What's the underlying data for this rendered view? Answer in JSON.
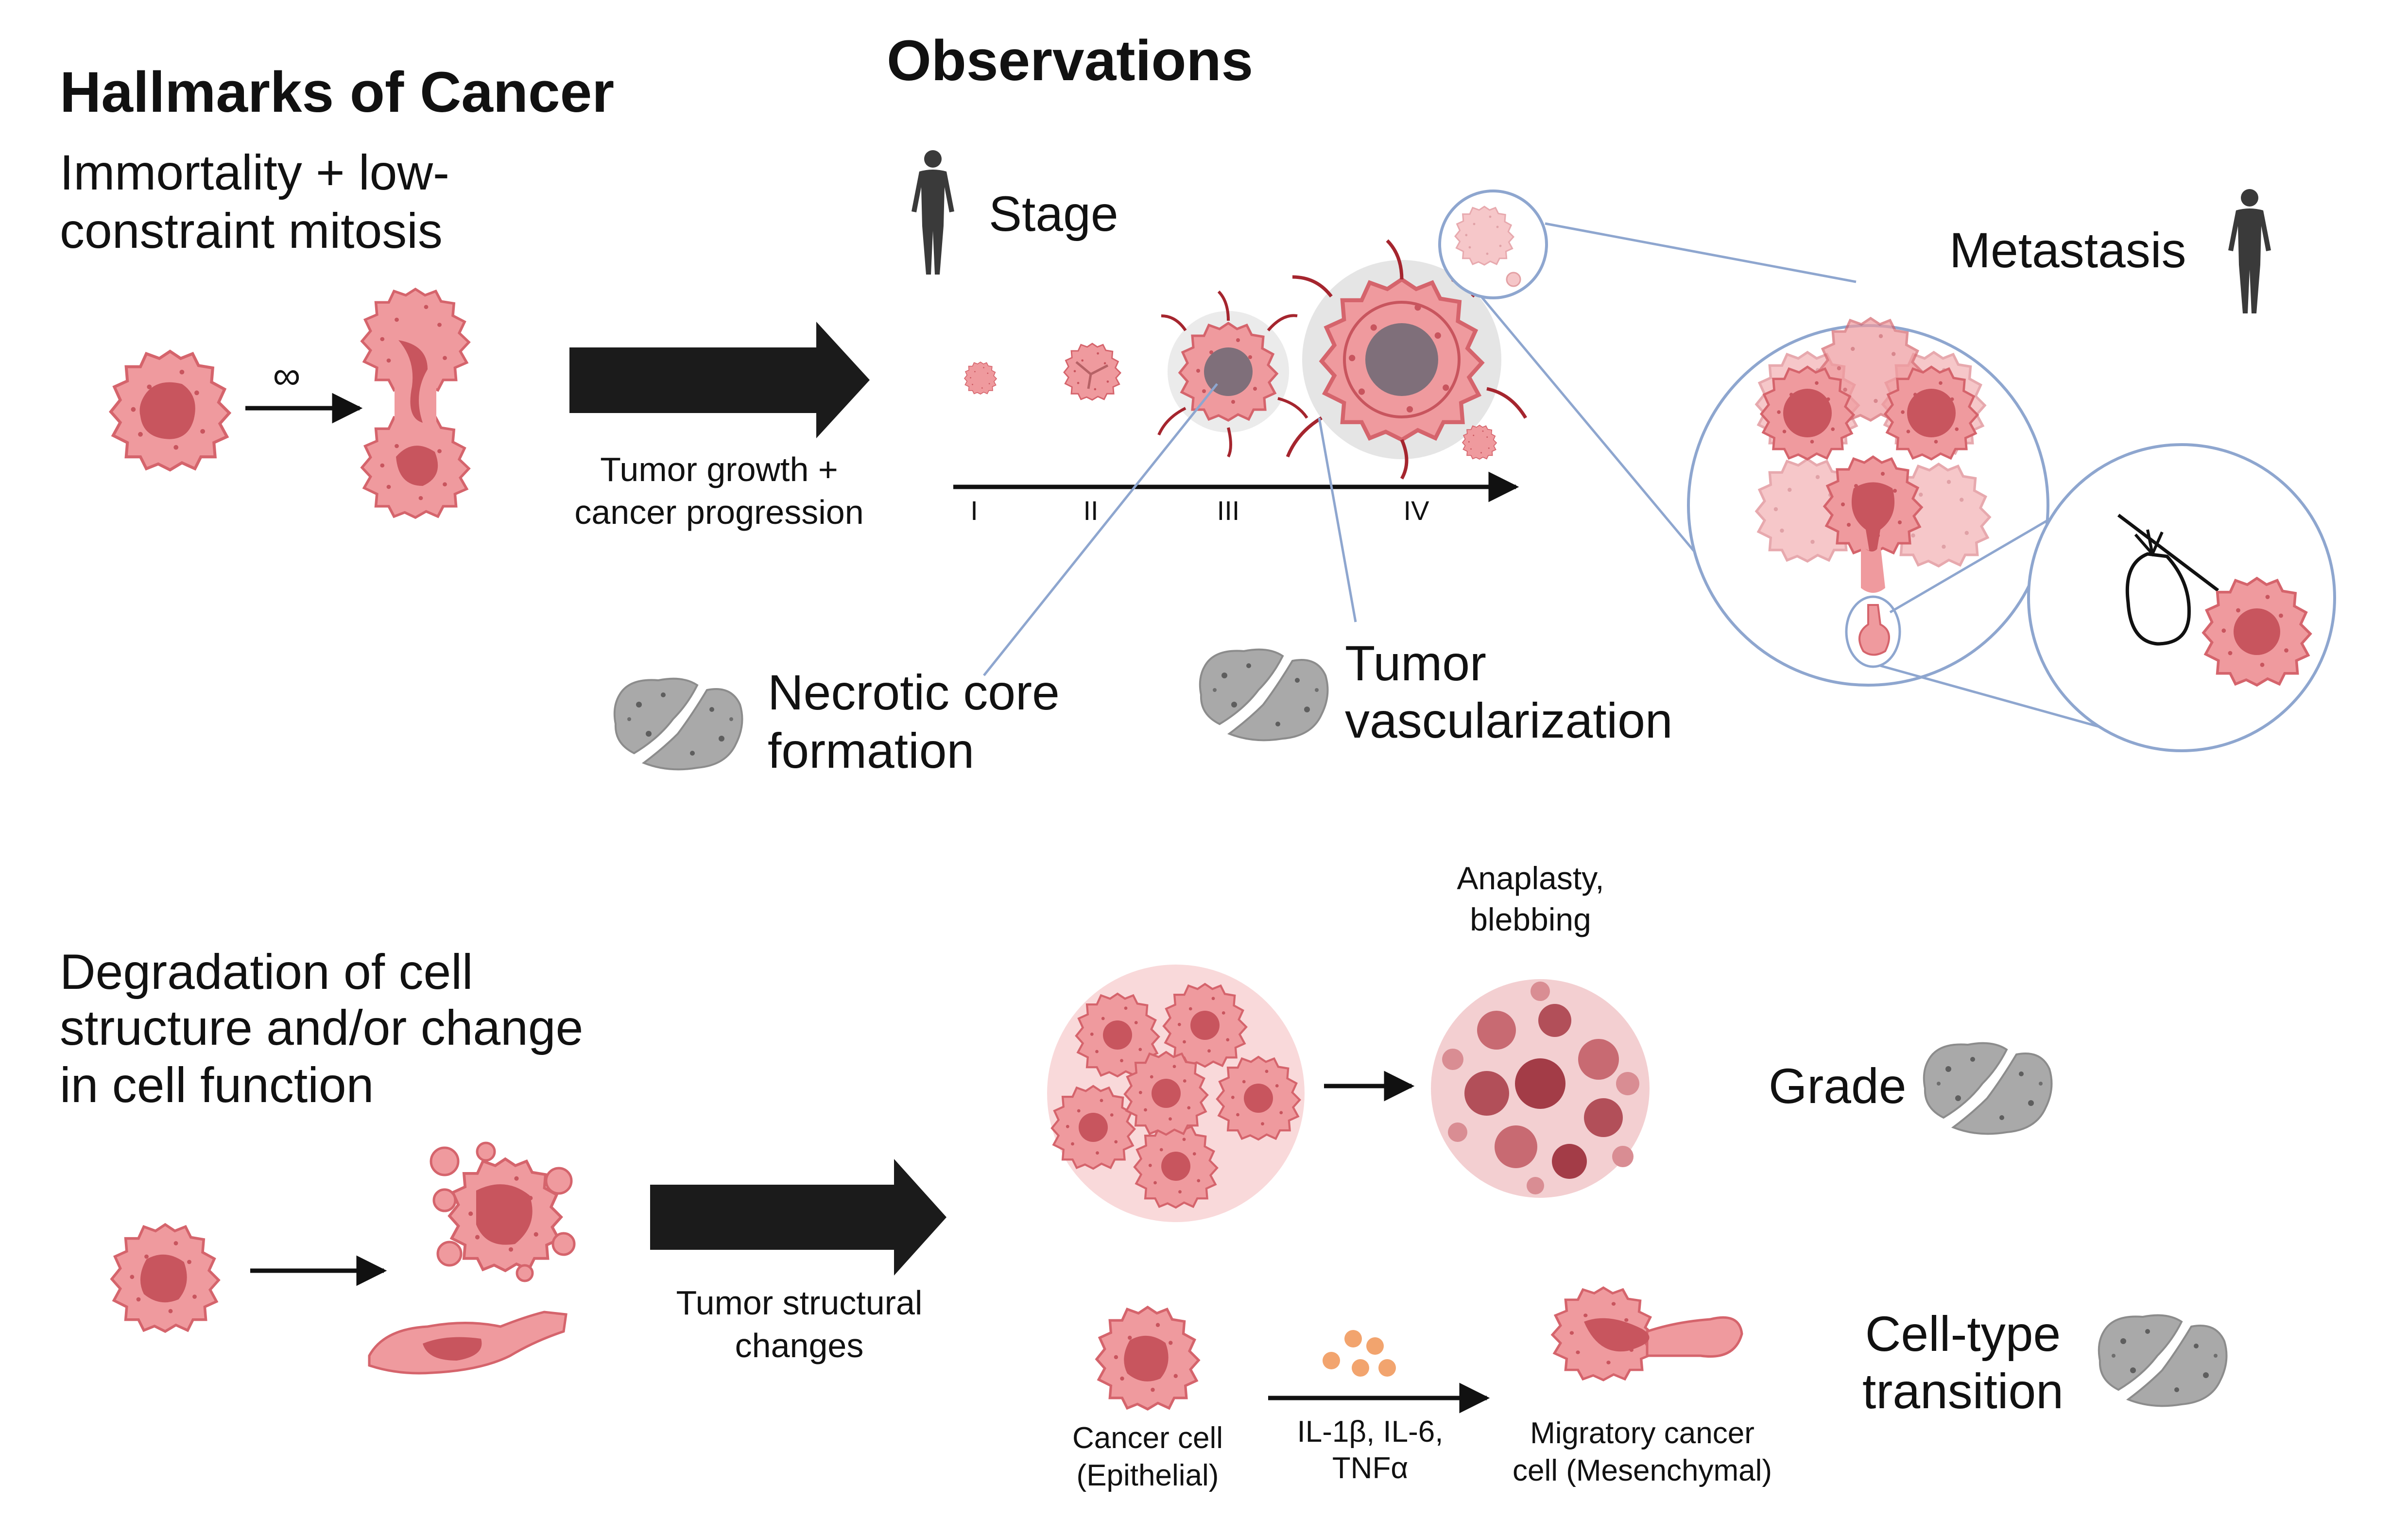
{
  "headings": {
    "hallmarks": "Hallmarks of Cancer",
    "observations": "Observations"
  },
  "hallmark_1": {
    "line1": "Immortality + low-",
    "line2": "constraint mitosis",
    "infinity_symbol": "∞"
  },
  "hallmark_2": {
    "line1": "Degradation of cell",
    "line2": "structure and/or change",
    "line3": "in cell function"
  },
  "arrows": {
    "growth_line1": "Tumor growth +",
    "growth_line2": "cancer progression",
    "structural_line1": "Tumor structural",
    "structural_line2": "changes"
  },
  "stage": {
    "label": "Stage",
    "ticks": [
      "I",
      "II",
      "III",
      "IV"
    ]
  },
  "metastasis": {
    "label": "Metastasis"
  },
  "necrotic": {
    "line1": "Necrotic core",
    "line2": "formation"
  },
  "vascularization": {
    "line1": "Tumor",
    "line2": "vascularization"
  },
  "grade": {
    "label": "Grade",
    "anaplasty_line1": "Anaplasty,",
    "anaplasty_line2": "blebbing"
  },
  "cell_type": {
    "label_line1": "Cell-type",
    "label_line2": "transition",
    "epithelial_line1": "Cancer cell",
    "epithelial_line2": "(Epithelial)",
    "cytokines_line1": "IL-1β, IL-6,",
    "cytokines_line2": "TNFα",
    "mesenchymal_line1": "Migratory cancer",
    "mesenchymal_line2": "cell (Mesenchymal)"
  },
  "colors": {
    "cell_fill": "#ef9a9e",
    "cell_stroke": "#d5646c",
    "nucleus": "#c8555e",
    "arrow_black": "#1b1b1b",
    "callout_blue": "#8ea6cf",
    "histology_gray": "#a9a9a9",
    "necrotic_core": "#7f6f7a",
    "vessel_red": "#a5252e",
    "cytokine_orange": "#f2a46e",
    "person_gray": "#3a3a3a"
  },
  "icons": [
    "person-icon",
    "histology-tissue-icon",
    "cancer-cell-icon",
    "knapsack-icon"
  ]
}
